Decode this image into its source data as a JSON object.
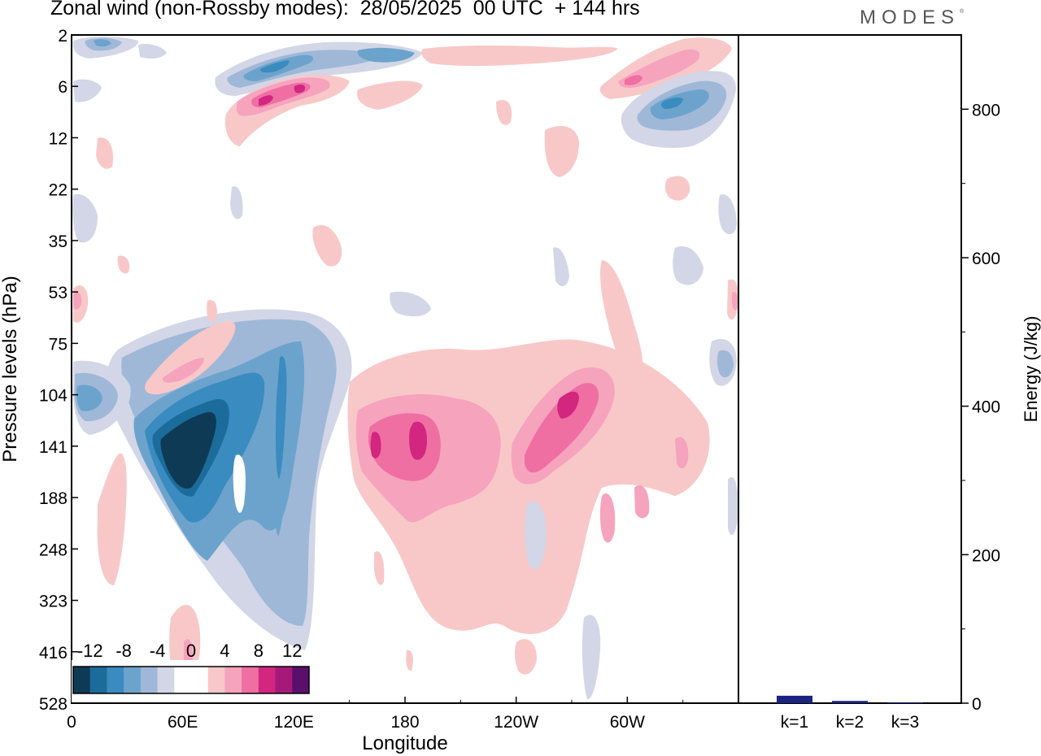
{
  "title": "Zonal wind (non-Rossby modes):  28/05/2025  00 UTC  + 144 hrs",
  "logo_text": "MODES",
  "logo_mark": "®",
  "chart_data": [
    {
      "type": "heatmap",
      "title": "Zonal wind (non-Rossby modes):  28/05/2025  00 UTC  + 144 hrs",
      "xlabel": "Longitude",
      "ylabel": "Pressure levels (hPa)",
      "x_ticks": [
        "0",
        "60E",
        "120E",
        "180",
        "120W",
        "60W"
      ],
      "x_tick_degrees": [
        0,
        60,
        120,
        180,
        240,
        300
      ],
      "xlim": [
        0,
        360
      ],
      "y_ticks": [
        "2",
        "6",
        "12",
        "22",
        "35",
        "53",
        "75",
        "104",
        "141",
        "188",
        "248",
        "323",
        "416",
        "528"
      ],
      "y_scale": "pressure levels (categorical, top to bottom)",
      "grid": false,
      "colorbar": {
        "labels": [
          "-12",
          "-8",
          "-4",
          "0",
          "4",
          "8",
          "12"
        ],
        "placement": "bottom-left",
        "colors": [
          "#0f3a55",
          "#1b6c9a",
          "#3a8bbf",
          "#6ba3cc",
          "#9fb8d8",
          "#d2d6e6",
          "#ffffff",
          "#ffffff",
          "#f8c8c8",
          "#f6a3be",
          "#ef6fa3",
          "#d2267f",
          "#a51a78",
          "#5b0f6c"
        ]
      },
      "features": [
        {
          "sign": "negative",
          "lon_range": [
            25,
            135
          ],
          "levels": "104-528 hPa",
          "min": -16,
          "peak_lon": 62,
          "peak_level": "141 hPa"
        },
        {
          "sign": "positive",
          "lon_range": [
            150,
            245
          ],
          "levels": "104-416 hPa",
          "max": 10,
          "peak_lon": 188,
          "peak_level": "141 hPa"
        },
        {
          "sign": "positive",
          "lon_range": [
            240,
            340
          ],
          "levels": "75-248 hPa",
          "max": 9,
          "peak_lon": 268,
          "peak_level": "104 hPa"
        },
        {
          "sign": "positive",
          "lon_range": [
            85,
            145
          ],
          "levels": "6-12 hPa",
          "max": 10
        },
        {
          "sign": "negative",
          "lon_range": [
            85,
            190
          ],
          "levels": "2-6 hPa",
          "min": -10
        },
        {
          "sign": "negative",
          "lon_range": [
            300,
            360
          ],
          "levels": "6-12 hPa",
          "min": -12
        },
        {
          "sign": "positive",
          "lon_range": [
            280,
            345
          ],
          "levels": "2-6 hPa",
          "max": 8
        }
      ]
    },
    {
      "type": "bar",
      "categories": [
        "k=1",
        "k=2",
        "k=3"
      ],
      "values": [
        10,
        3,
        1
      ],
      "ylabel": "Energy (J/kg)",
      "ylim": [
        0,
        900
      ],
      "y_ticks": [
        "0",
        "200",
        "400",
        "600",
        "800"
      ],
      "bar_color": "#1a237e"
    }
  ]
}
